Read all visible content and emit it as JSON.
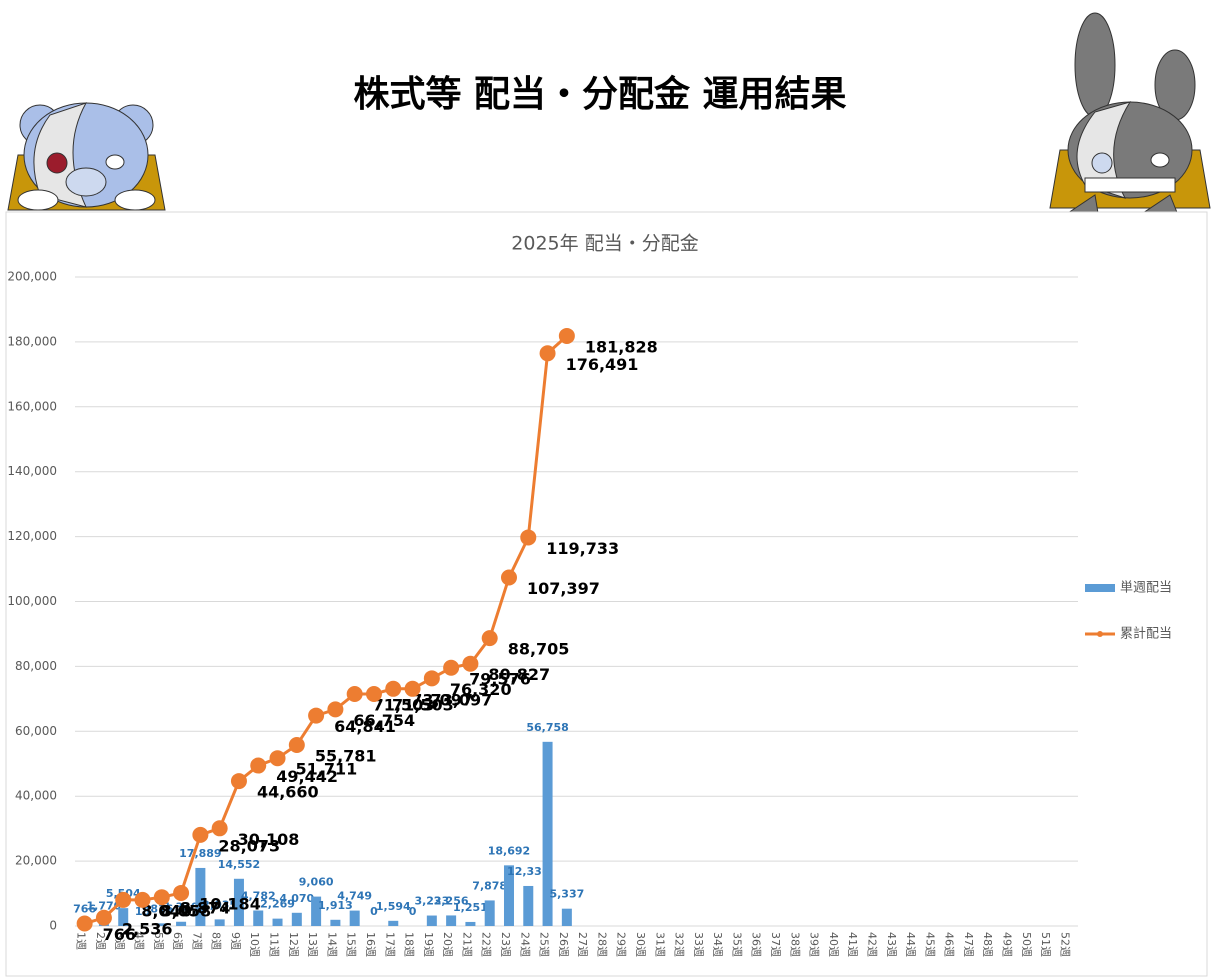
{
  "page_title": "株式等 配当・分配金 運用結果",
  "chart_data": {
    "type": "bar",
    "title": "2025年 配当・分配金",
    "categories": [
      "1週",
      "2週",
      "3週",
      "4週",
      "5週",
      "6週",
      "7週",
      "8週",
      "9週",
      "10週",
      "11週",
      "12週",
      "13週",
      "14週",
      "15週",
      "16週",
      "17週",
      "18週",
      "19週",
      "20週",
      "21週",
      "22週",
      "23週",
      "24週",
      "25週",
      "26週",
      "27週",
      "28週",
      "29週",
      "30週",
      "31週",
      "32週",
      "33週",
      "34週",
      "35週",
      "36週",
      "37週",
      "38週",
      "39週",
      "40週",
      "41週",
      "42週",
      "43週",
      "44週",
      "45週",
      "46週",
      "47週",
      "48週",
      "49週",
      "50週",
      "51週",
      "52週"
    ],
    "series": [
      {
        "name": "単週配当",
        "type": "bar",
        "color": "#5b9bd5",
        "values": [
          766,
          1770,
          5504,
          18,
          816,
          1310,
          17889,
          2035,
          14552,
          4782,
          2269,
          4070,
          9060,
          1913,
          4749,
          0,
          1594,
          0,
          3223,
          3256,
          1251,
          7878,
          18692,
          12336,
          56758,
          5337,
          null,
          null,
          null,
          null,
          null,
          null,
          null,
          null,
          null,
          null,
          null,
          null,
          null,
          null,
          null,
          null,
          null,
          null,
          null,
          null,
          null,
          null,
          null,
          null,
          null,
          null
        ],
        "value_labels": [
          "766",
          "1,770",
          "5,504",
          "18",
          "816",
          "1,310",
          "17,889",
          "2,035",
          "14,552",
          "4,782",
          "2,269",
          "4,070",
          "9,060",
          "1,913",
          "4,749",
          "0",
          "1,594",
          "0",
          "3,223",
          "3,256",
          "1,251",
          "7,878",
          "18,692",
          "12,336",
          "56,758",
          "5,337",
          null,
          null,
          null,
          null,
          null,
          null,
          null,
          null,
          null,
          null,
          null,
          null,
          null,
          null,
          null,
          null,
          null,
          null,
          null,
          null,
          null,
          null,
          null,
          null,
          null,
          null
        ]
      },
      {
        "name": "累計配当",
        "type": "line",
        "color": "#ed7d31",
        "values": [
          766,
          2536,
          8040,
          8058,
          8874,
          10184,
          28073,
          30108,
          44660,
          49442,
          51711,
          55781,
          64841,
          66754,
          71503,
          71503,
          73097,
          73097,
          76320,
          79576,
          80827,
          88705,
          107397,
          119733,
          176491,
          181828,
          null,
          null,
          null,
          null,
          null,
          null,
          null,
          null,
          null,
          null,
          null,
          null,
          null,
          null,
          null,
          null,
          null,
          null,
          null,
          null,
          null,
          null,
          null,
          null,
          null,
          null
        ],
        "value_labels": [
          "766",
          "2,536",
          "8,040",
          "8,058",
          "8,874",
          "10,184",
          "28,073",
          "30,108",
          "44,660",
          "49,442",
          "51,711",
          "55,781",
          "64,841",
          "66,754",
          "71,503",
          "71,503",
          "73,097",
          "73,097",
          "76,320",
          "79,576",
          "80,827",
          "88,705",
          "107,397",
          "119,733",
          "176,491",
          "181,828",
          null,
          null,
          null,
          null,
          null,
          null,
          null,
          null,
          null,
          null,
          null,
          null,
          null,
          null,
          null,
          null,
          null,
          null,
          null,
          null,
          null,
          null,
          null,
          null,
          null,
          null
        ]
      }
    ],
    "ylim": [
      0,
      200000
    ],
    "yticks": [
      0,
      {
        "value": 20000,
        "label": "20,000"
      },
      {
        "value": 40000,
        "label": "40,000"
      },
      {
        "value": 60000,
        "label": "60,000"
      },
      {
        "value": 80000,
        "label": "80,000"
      },
      {
        "value": 100000,
        "label": "100,000"
      },
      {
        "value": 120000,
        "label": "120,000"
      },
      {
        "value": 140000,
        "label": "140,000"
      },
      {
        "value": 160000,
        "label": "160,000"
      },
      {
        "value": 180000,
        "label": "180,000"
      },
      {
        "value": 200000,
        "label": "200,000"
      }
    ],
    "grid": true,
    "legend": "right"
  }
}
